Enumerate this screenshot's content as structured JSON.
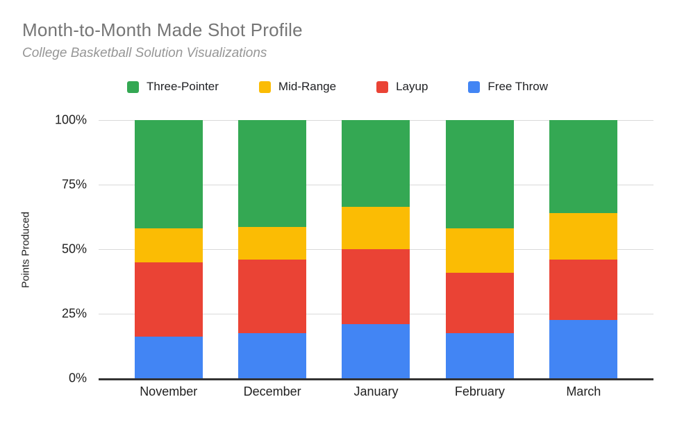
{
  "header": {
    "title": "Month-to-Month Made Shot Profile",
    "subtitle": "College Basketball Solution Visualizations"
  },
  "colors": {
    "three_pointer": "#34A853",
    "mid_range": "#FBBC04",
    "layup": "#EA4335",
    "free_throw": "#4285F4",
    "title_text": "#757575",
    "subtitle_text": "#969696",
    "axis_text": "#1F1F1F",
    "gridline": "#D9D9D9",
    "axis_line": "#333333",
    "background": "#FFFFFF"
  },
  "chart_data": {
    "type": "bar",
    "variant": "100-percent-stacked-column",
    "title": "Month-to-Month Made Shot Profile",
    "subtitle": "College Basketball Solution Visualizations",
    "categories": [
      "November",
      "December",
      "January",
      "February",
      "March"
    ],
    "series": [
      {
        "name": "Free Throw",
        "color": "#4285F4",
        "values": [
          16,
          17.5,
          21,
          17.5,
          22.5
        ]
      },
      {
        "name": "Layup",
        "color": "#EA4335",
        "values": [
          29,
          28.5,
          29,
          23.5,
          23.5
        ]
      },
      {
        "name": "Mid-Range",
        "color": "#FBBC04",
        "values": [
          13,
          12.5,
          16.5,
          17,
          18
        ]
      },
      {
        "name": "Three-Pointer",
        "color": "#34A853",
        "values": [
          42,
          41.5,
          33.5,
          42,
          36
        ]
      }
    ],
    "stack_order_note": "series listed bottom-to-top; values are percent of points produced, each month sums to 100",
    "legend": [
      "Three-Pointer",
      "Mid-Range",
      "Layup",
      "Free Throw"
    ],
    "legend_position": "top",
    "xlabel": "",
    "ylabel": "Points Produced",
    "ylim": [
      0,
      100
    ],
    "yticks": [
      {
        "label": "0%",
        "value": 0
      },
      {
        "label": "25%",
        "value": 25
      },
      {
        "label": "50%",
        "value": 50
      },
      {
        "label": "75%",
        "value": 75
      },
      {
        "label": "100%",
        "value": 100
      }
    ],
    "grid": true
  }
}
